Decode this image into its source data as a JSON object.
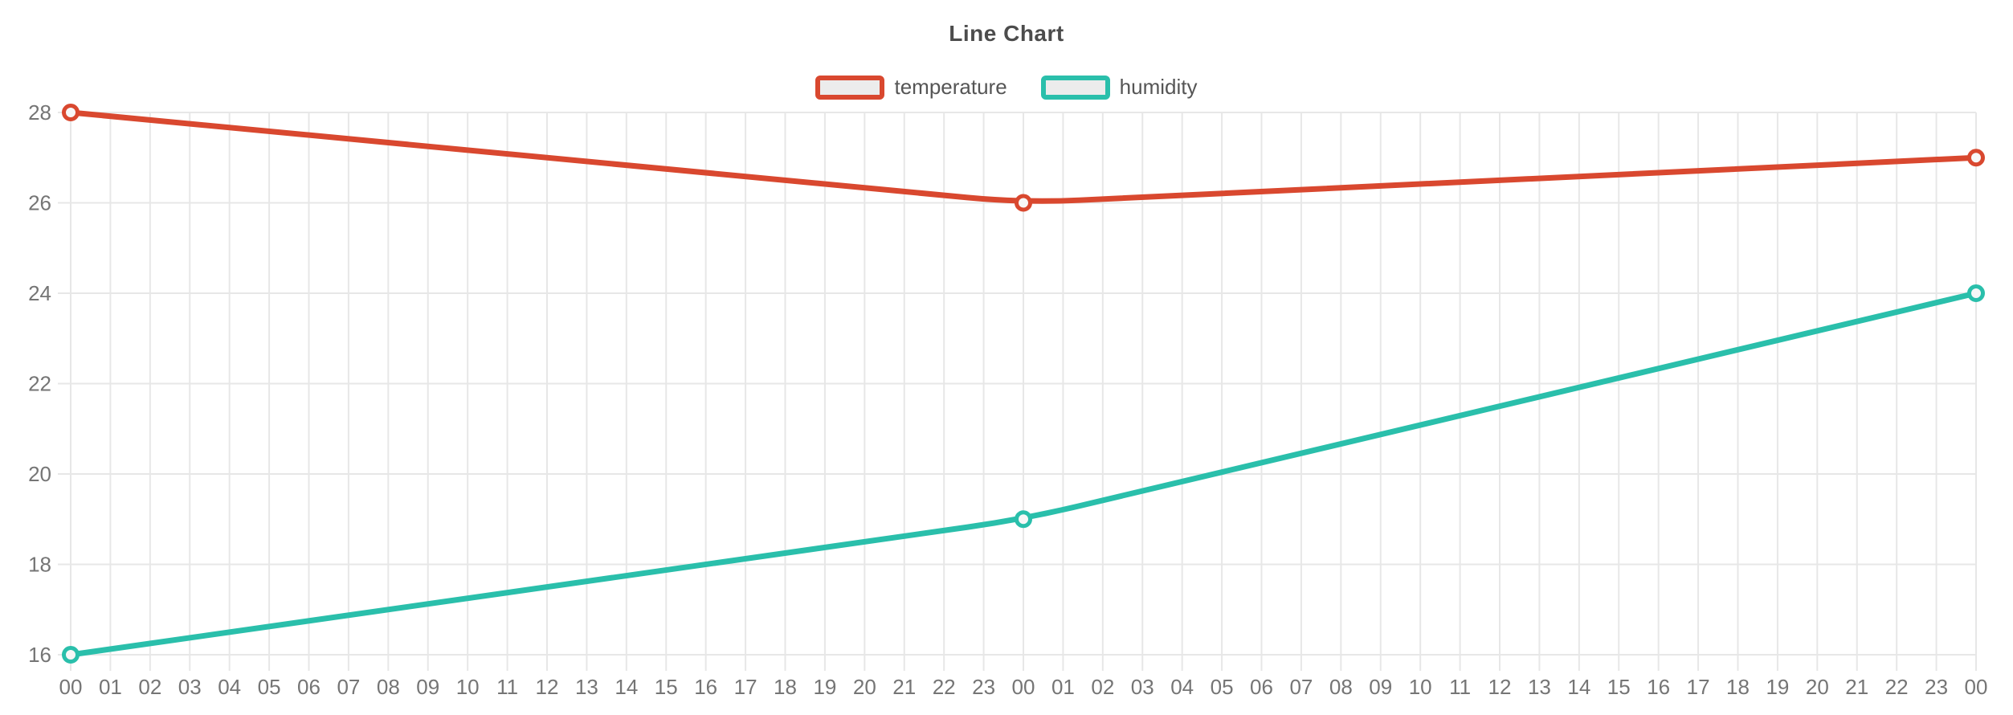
{
  "chart_data": {
    "type": "line",
    "title": "Line Chart",
    "legend_position": "top",
    "grid": true,
    "categories": [
      "00",
      "01",
      "02",
      "03",
      "04",
      "05",
      "06",
      "07",
      "08",
      "09",
      "10",
      "11",
      "12",
      "13",
      "14",
      "15",
      "16",
      "17",
      "18",
      "19",
      "20",
      "21",
      "22",
      "23",
      "00",
      "01",
      "02",
      "03",
      "04",
      "05",
      "06",
      "07",
      "08",
      "09",
      "10",
      "11",
      "12",
      "13",
      "14",
      "15",
      "16",
      "17",
      "18",
      "19",
      "20",
      "21",
      "22",
      "23",
      "00"
    ],
    "yticks": [
      16,
      18,
      20,
      22,
      24,
      26,
      28
    ],
    "ylim": [
      16,
      28
    ],
    "series": [
      {
        "name": "temperature",
        "color": "#d9482f",
        "points": [
          {
            "i": 0,
            "v": 28
          },
          {
            "i": 24,
            "v": 26
          },
          {
            "i": 48,
            "v": 27
          }
        ]
      },
      {
        "name": "humidity",
        "color": "#2abfab",
        "points": [
          {
            "i": 0,
            "v": 16
          },
          {
            "i": 24,
            "v": 19
          },
          {
            "i": 48,
            "v": 24
          }
        ]
      }
    ]
  }
}
